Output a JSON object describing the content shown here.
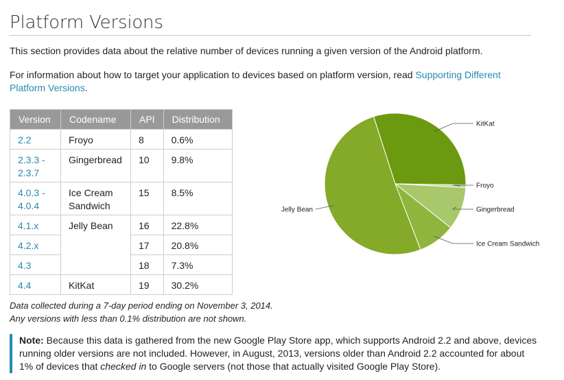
{
  "page": {
    "title": "Platform Versions",
    "intro": "This section provides data about the relative number of devices running a given version of the Android platform.",
    "target_prefix": "For information about how to target your application to devices based on platform version, read ",
    "target_link": "Supporting Different Platform Versions",
    "target_suffix": "."
  },
  "table": {
    "headers": [
      "Version",
      "Codename",
      "API",
      "Distribution"
    ],
    "rows": [
      {
        "version": "2.2",
        "codename": "Froyo",
        "api": "8",
        "distribution": "0.6%"
      },
      {
        "version": "2.3.3 -\n2.3.7",
        "codename": "Gingerbread",
        "api": "10",
        "distribution": "9.8%"
      },
      {
        "version": "4.0.3 -\n4.0.4",
        "codename": "Ice Cream\nSandwich",
        "api": "15",
        "distribution": "8.5%"
      },
      {
        "version": "4.1.x",
        "codename": "Jelly Bean",
        "api": "16",
        "distribution": "22.8%"
      },
      {
        "version": "4.2.x",
        "codename": "",
        "api": "17",
        "distribution": "20.8%"
      },
      {
        "version": "4.3",
        "codename": "",
        "api": "18",
        "distribution": "7.3%"
      },
      {
        "version": "4.4",
        "codename": "KitKat",
        "api": "19",
        "distribution": "30.2%"
      }
    ]
  },
  "chart_data": {
    "type": "pie",
    "labels": [
      "KitKat",
      "Froyo",
      "Gingerbread",
      "Ice Cream Sandwich",
      "Jelly Bean"
    ],
    "values": [
      30.2,
      0.6,
      9.8,
      8.5,
      50.9
    ],
    "colors": [
      "#6b990f",
      "#b9d48a",
      "#a9c86b",
      "#8fb53d",
      "#85a928"
    ]
  },
  "footnote": {
    "line1": "Data collected during a 7-day period ending on November 3, 2014.",
    "line2": "Any versions with less than 0.1% distribution are not shown."
  },
  "callout": {
    "label": "Note:",
    "text_before": " Because this data is gathered from the new Google Play Store app, which supports Android 2.2 and above, devices running older versions are not included. However, in August, 2013, versions older than Android 2.2 accounted for about 1% of devices that ",
    "emphasis": "checked in",
    "text_after": " to Google servers (not those that actually visited Google Play Store)."
  },
  "colors": {
    "accent": "#258aaf",
    "header_bg": "#999999"
  }
}
